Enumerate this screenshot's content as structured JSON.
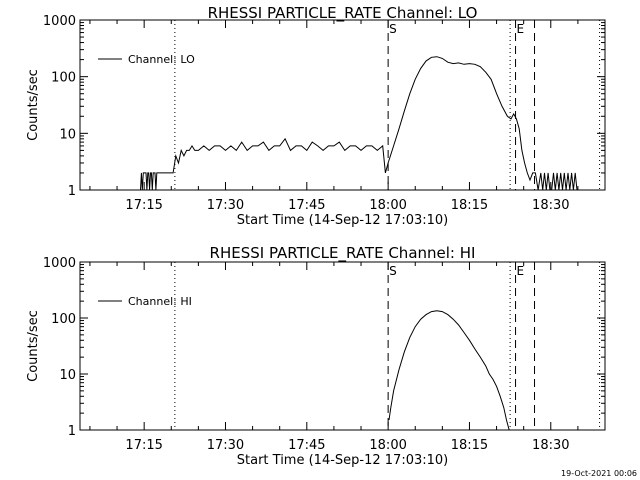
{
  "background": "#ffffff",
  "foreground": "#000000",
  "footer": {
    "timestamp": "19-Oct-2021 00:06"
  },
  "chart_data": [
    {
      "type": "line",
      "title": "RHESSI PARTICLE_RATE Channel: LO",
      "xlabel": "Start Time (14-Sep-12 17:03:10)",
      "ylabel": "Counts/sec",
      "yscale": "log",
      "ylim": [
        1,
        1000
      ],
      "yticks": [
        "1",
        "10",
        "100",
        "1000"
      ],
      "xlim": [
        "17:03:10",
        "18:40:00"
      ],
      "xticks": [
        "17:15",
        "17:30",
        "17:45",
        "18:00",
        "18:15",
        "18:30"
      ],
      "legend_position": "top-left",
      "markers": [
        {
          "time": "17:20:40",
          "style": "dotted",
          "label": ""
        },
        {
          "time": "18:00:00",
          "style": "dashed",
          "label": "S"
        },
        {
          "time": "18:22:30",
          "style": "dotted",
          "label": ""
        },
        {
          "time": "18:23:30",
          "style": "dashed",
          "label": "E"
        },
        {
          "time": "18:27:00",
          "style": "dashed",
          "label": ""
        },
        {
          "time": "18:39:00",
          "style": "dotted",
          "label": ""
        }
      ],
      "series": [
        {
          "name": "Channel: LO",
          "x": [
            "17:14:20",
            "17:14:30",
            "17:14:40",
            "17:14:50",
            "17:15:00",
            "17:15:10",
            "17:15:20",
            "17:15:30",
            "17:15:40",
            "17:15:50",
            "17:16:00",
            "17:16:10",
            "17:16:20",
            "17:16:30",
            "17:16:40",
            "17:16:50",
            "17:17:00",
            "17:17:10",
            "17:17:20",
            "17:17:30",
            "17:17:40",
            "17:20:20",
            "17:20:50",
            "17:21:20",
            "17:21:50",
            "17:22:20",
            "17:22:50",
            "17:23:20",
            "17:23:50",
            "17:24:20",
            "17:25:00",
            "17:26:00",
            "17:27:00",
            "17:28:00",
            "17:29:00",
            "17:30:00",
            "17:31:00",
            "17:32:00",
            "17:33:00",
            "17:34:00",
            "17:35:00",
            "17:36:00",
            "17:37:00",
            "17:38:00",
            "17:39:00",
            "17:40:00",
            "17:41:00",
            "17:42:00",
            "17:43:00",
            "17:44:00",
            "17:45:00",
            "17:46:00",
            "17:47:00",
            "17:48:00",
            "17:49:00",
            "17:50:00",
            "17:51:00",
            "17:52:00",
            "17:53:00",
            "17:54:00",
            "17:55:00",
            "17:56:00",
            "17:57:00",
            "17:58:00",
            "17:59:00",
            "17:59:30",
            "18:00:00",
            "18:01:00",
            "18:02:00",
            "18:03:00",
            "18:04:00",
            "18:05:00",
            "18:06:00",
            "18:07:00",
            "18:08:00",
            "18:09:00",
            "18:10:00",
            "18:11:00",
            "18:12:00",
            "18:13:00",
            "18:14:00",
            "18:15:00",
            "18:16:00",
            "18:17:00",
            "18:18:00",
            "18:19:00",
            "18:20:00",
            "18:21:00",
            "18:22:00",
            "18:22:40",
            "18:23:10",
            "18:23:40",
            "18:24:10",
            "18:24:40",
            "18:25:10",
            "18:25:40",
            "18:26:10",
            "18:26:40",
            "18:27:10",
            "18:27:40",
            "18:28:10",
            "18:28:30",
            "18:28:50",
            "18:29:10",
            "18:29:30",
            "18:29:50",
            "18:30:10",
            "18:30:30",
            "18:30:50",
            "18:31:10",
            "18:31:30",
            "18:31:50",
            "18:32:10",
            "18:32:30",
            "18:32:50",
            "18:33:10",
            "18:33:30",
            "18:33:50",
            "18:34:10",
            "18:34:30",
            "18:34:50"
          ],
          "y": [
            1,
            2,
            1,
            2,
            2,
            2,
            2,
            1,
            2,
            2,
            1,
            2,
            2,
            1,
            2,
            2,
            2,
            1,
            2,
            2,
            2,
            2,
            4,
            3,
            5,
            4,
            5,
            5,
            6,
            5,
            5,
            6,
            5,
            6,
            6,
            5,
            6,
            5,
            7,
            5,
            6,
            6,
            7,
            5,
            6,
            6,
            8,
            5,
            6,
            6,
            5,
            7,
            6,
            5,
            6,
            6,
            7,
            5,
            6,
            6,
            5,
            6,
            6,
            5,
            6,
            2,
            3,
            6,
            12,
            25,
            50,
            90,
            140,
            190,
            220,
            225,
            210,
            180,
            170,
            175,
            165,
            170,
            165,
            150,
            120,
            90,
            50,
            30,
            20,
            18,
            22,
            18,
            12,
            5,
            3,
            2,
            1.5,
            2,
            2,
            1,
            2,
            1,
            2,
            1,
            2,
            1,
            1,
            2,
            1,
            2,
            1,
            2,
            1,
            2,
            1,
            2,
            1,
            2,
            1,
            2,
            1
          ]
        }
      ]
    },
    {
      "type": "line",
      "title": "RHESSI PARTICLE_RATE Channel: HI",
      "xlabel": "Start Time (14-Sep-12 17:03:10)",
      "ylabel": "Counts/sec",
      "yscale": "log",
      "ylim": [
        1,
        1000
      ],
      "yticks": [
        "1",
        "10",
        "100",
        "1000"
      ],
      "xlim": [
        "17:03:10",
        "18:40:00"
      ],
      "xticks": [
        "17:15",
        "17:30",
        "17:45",
        "18:00",
        "18:15",
        "18:30"
      ],
      "legend_position": "top-left",
      "markers": [
        {
          "time": "17:20:40",
          "style": "dotted",
          "label": ""
        },
        {
          "time": "18:00:00",
          "style": "dashed",
          "label": "S"
        },
        {
          "time": "18:22:30",
          "style": "dotted",
          "label": ""
        },
        {
          "time": "18:23:30",
          "style": "dashed",
          "label": "E"
        },
        {
          "time": "18:27:00",
          "style": "dashed",
          "label": ""
        },
        {
          "time": "18:39:00",
          "style": "dotted",
          "label": ""
        }
      ],
      "series": [
        {
          "name": "Channel: HI",
          "x": [
            "18:00:10",
            "18:00:30",
            "18:01:00",
            "18:02:00",
            "18:03:00",
            "18:04:00",
            "18:05:00",
            "18:06:00",
            "18:07:00",
            "18:08:00",
            "18:09:00",
            "18:10:00",
            "18:11:00",
            "18:12:00",
            "18:13:00",
            "18:14:00",
            "18:15:00",
            "18:16:00",
            "18:17:00",
            "18:18:00",
            "18:18:40",
            "18:19:20",
            "18:20:00",
            "18:20:40",
            "18:21:20",
            "18:21:50",
            "18:22:20"
          ],
          "y": [
            1.5,
            2.5,
            5,
            12,
            25,
            45,
            70,
            95,
            115,
            130,
            135,
            130,
            115,
            95,
            75,
            55,
            40,
            28,
            20,
            14,
            10,
            8,
            6,
            4,
            2.5,
            1.5,
            1
          ]
        }
      ]
    }
  ]
}
